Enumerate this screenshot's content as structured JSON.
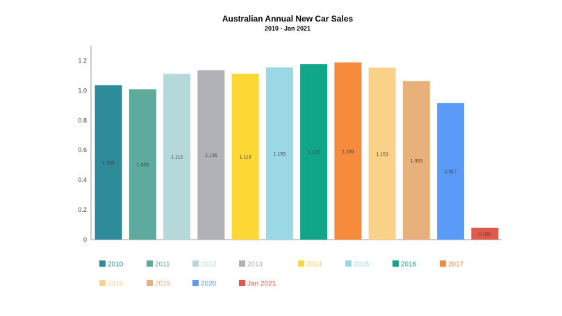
{
  "chart_data": {
    "type": "bar",
    "title": "Australian Annual New Car Sales",
    "subtitle": "2010 - Jan 2021",
    "xlabel": "",
    "ylabel": "",
    "ylim": [
      0,
      1.3
    ],
    "yticks": [
      "0",
      "0.2",
      "0.4",
      "0.6",
      "0.8",
      "1.0",
      "1.2"
    ],
    "ytick_values": [
      0,
      0.2,
      0.4,
      0.6,
      0.8,
      1.0,
      1.2
    ],
    "grid": false,
    "legend_position": "bottom",
    "categories": [
      "2010",
      "2011",
      "2012",
      "2013",
      "2014",
      "2015",
      "2016",
      "2017",
      "2018",
      "2019",
      "2020",
      "Jan 2021"
    ],
    "values": [
      1.036,
      1.009,
      1.112,
      1.136,
      1.113,
      1.155,
      1.178,
      1.189,
      1.153,
      1.063,
      0.917,
      0.08
    ],
    "labels": [
      "1.036",
      "1.009",
      "1.112",
      "1.136",
      "1.113",
      "1.155",
      "1.178",
      "1.189",
      "1.153",
      "1.063",
      "0.917",
      "0.080"
    ],
    "colors": [
      "#2e8b9a",
      "#5eab9e",
      "#b5d8da",
      "#b1b2b5",
      "#fdd835",
      "#9ad8e6",
      "#11a58a",
      "#f68b3d",
      "#f9d287",
      "#e8b07a",
      "#5b9bf8",
      "#e05a4b"
    ]
  }
}
